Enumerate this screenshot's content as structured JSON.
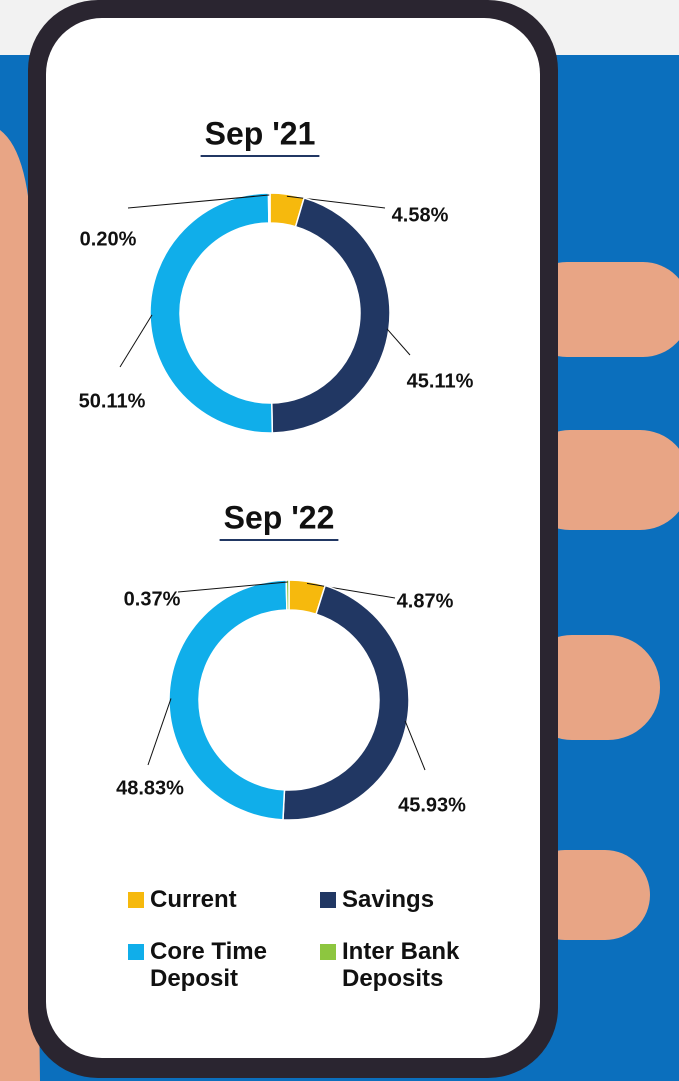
{
  "categories": [
    "Current",
    "Savings",
    "Core Time Deposit",
    "Inter Bank Deposits"
  ],
  "colors": [
    "#f6b90d",
    "#213763",
    "#10aeea",
    "#8dc63f"
  ],
  "chart_data": [
    {
      "type": "pie",
      "title": "Sep '21",
      "values": [
        4.58,
        45.11,
        50.11,
        0.2
      ],
      "value_labels": [
        "4.58%",
        "45.11%",
        "50.11%",
        "0.20%"
      ]
    },
    {
      "type": "pie",
      "title": "Sep '22",
      "values": [
        4.87,
        45.93,
        48.83,
        0.37
      ],
      "value_labels": [
        "4.87%",
        "45.93%",
        "48.83%",
        "0.37%"
      ]
    }
  ]
}
